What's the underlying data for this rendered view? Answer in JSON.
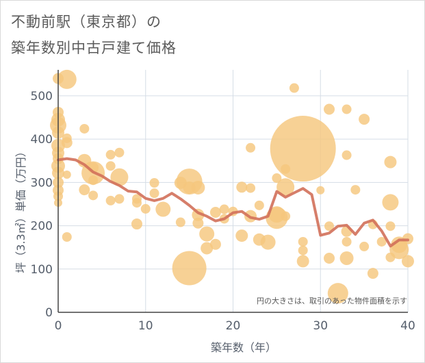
{
  "chart_data": {
    "type": "scatter",
    "title_lines": [
      "不動前駅（東京都）の",
      "築年数別中古戸建て価格"
    ],
    "xlabel": "築年数（年）",
    "ylabel": "坪（3.3㎡）単価（万円）",
    "xlim": [
      0,
      40
    ],
    "ylim": [
      0,
      560
    ],
    "x_ticks": [
      "0",
      "10",
      "20",
      "30",
      "40"
    ],
    "y_ticks": [
      "0",
      "100",
      "200",
      "300",
      "400",
      "500"
    ],
    "grid": true,
    "note": "円の大きさは、取引のあった物件面積を示す",
    "colors": {
      "bubble": "#f5c77e",
      "line": "#d2705a",
      "grid": "#d5dde6",
      "axis": "#444444"
    },
    "bubbles": [
      {
        "x": 0,
        "y": 540,
        "s": 8
      },
      {
        "x": 1,
        "y": 538,
        "s": 14
      },
      {
        "x": 0,
        "y": 462,
        "s": 8
      },
      {
        "x": 0,
        "y": 445,
        "s": 10
      },
      {
        "x": 0,
        "y": 432,
        "s": 12
      },
      {
        "x": 0,
        "y": 415,
        "s": 9
      },
      {
        "x": 1,
        "y": 402,
        "s": 7
      },
      {
        "x": 1,
        "y": 392,
        "s": 8
      },
      {
        "x": 0,
        "y": 385,
        "s": 10
      },
      {
        "x": 0,
        "y": 368,
        "s": 9
      },
      {
        "x": 0,
        "y": 355,
        "s": 8
      },
      {
        "x": 0,
        "y": 338,
        "s": 10
      },
      {
        "x": 0,
        "y": 322,
        "s": 9
      },
      {
        "x": 0,
        "y": 300,
        "s": 8
      },
      {
        "x": 0,
        "y": 282,
        "s": 8
      },
      {
        "x": 0,
        "y": 268,
        "s": 7
      },
      {
        "x": 0,
        "y": 253,
        "s": 6
      },
      {
        "x": 1,
        "y": 174,
        "s": 7
      },
      {
        "x": 1,
        "y": 318,
        "s": 6
      },
      {
        "x": 3,
        "y": 424,
        "s": 7
      },
      {
        "x": 3,
        "y": 350,
        "s": 10
      },
      {
        "x": 4,
        "y": 334,
        "s": 8
      },
      {
        "x": 4,
        "y": 322,
        "s": 17
      },
      {
        "x": 4,
        "y": 305,
        "s": 7
      },
      {
        "x": 3,
        "y": 283,
        "s": 8
      },
      {
        "x": 4,
        "y": 270,
        "s": 7
      },
      {
        "x": 6,
        "y": 364,
        "s": 7
      },
      {
        "x": 6,
        "y": 338,
        "s": 7
      },
      {
        "x": 6,
        "y": 258,
        "s": 7
      },
      {
        "x": 7,
        "y": 369,
        "s": 7
      },
      {
        "x": 7,
        "y": 312,
        "s": 13
      },
      {
        "x": 7,
        "y": 262,
        "s": 7
      },
      {
        "x": 9,
        "y": 262,
        "s": 7
      },
      {
        "x": 9,
        "y": 253,
        "s": 7
      },
      {
        "x": 9,
        "y": 204,
        "s": 8
      },
      {
        "x": 10,
        "y": 239,
        "s": 7
      },
      {
        "x": 11,
        "y": 299,
        "s": 7
      },
      {
        "x": 11,
        "y": 275,
        "s": 7
      },
      {
        "x": 12,
        "y": 238,
        "s": 11
      },
      {
        "x": 14,
        "y": 299,
        "s": 9
      },
      {
        "x": 14,
        "y": 208,
        "s": 7
      },
      {
        "x": 15,
        "y": 302,
        "s": 19
      },
      {
        "x": 15,
        "y": 288,
        "s": 9
      },
      {
        "x": 15,
        "y": 102,
        "s": 25
      },
      {
        "x": 16,
        "y": 288,
        "s": 10
      },
      {
        "x": 16,
        "y": 225,
        "s": 9
      },
      {
        "x": 16,
        "y": 206,
        "s": 8
      },
      {
        "x": 17,
        "y": 181,
        "s": 11
      },
      {
        "x": 17,
        "y": 148,
        "s": 9
      },
      {
        "x": 18,
        "y": 231,
        "s": 8
      },
      {
        "x": 18,
        "y": 157,
        "s": 8
      },
      {
        "x": 19,
        "y": 238,
        "s": 7
      },
      {
        "x": 19,
        "y": 216,
        "s": 7
      },
      {
        "x": 20,
        "y": 233,
        "s": 7
      },
      {
        "x": 21,
        "y": 289,
        "s": 8
      },
      {
        "x": 21,
        "y": 177,
        "s": 9
      },
      {
        "x": 22,
        "y": 380,
        "s": 7
      },
      {
        "x": 22,
        "y": 287,
        "s": 7
      },
      {
        "x": 22,
        "y": 222,
        "s": 9
      },
      {
        "x": 23,
        "y": 247,
        "s": 7
      },
      {
        "x": 23,
        "y": 168,
        "s": 9
      },
      {
        "x": 24,
        "y": 162,
        "s": 11
      },
      {
        "x": 25,
        "y": 310,
        "s": 7
      },
      {
        "x": 25,
        "y": 226,
        "s": 12
      },
      {
        "x": 25,
        "y": 218,
        "s": 16
      },
      {
        "x": 26,
        "y": 331,
        "s": 7
      },
      {
        "x": 26,
        "y": 289,
        "s": 13
      },
      {
        "x": 26,
        "y": 222,
        "s": 7
      },
      {
        "x": 27,
        "y": 518,
        "s": 7
      },
      {
        "x": 28,
        "y": 378,
        "s": 48
      },
      {
        "x": 28,
        "y": 163,
        "s": 7
      },
      {
        "x": 28,
        "y": 143,
        "s": 7
      },
      {
        "x": 28,
        "y": 118,
        "s": 9
      },
      {
        "x": 30,
        "y": 282,
        "s": 6
      },
      {
        "x": 31,
        "y": 469,
        "s": 8
      },
      {
        "x": 31,
        "y": 199,
        "s": 7
      },
      {
        "x": 31,
        "y": 125,
        "s": 8
      },
      {
        "x": 32,
        "y": 44,
        "s": 15
      },
      {
        "x": 33,
        "y": 469,
        "s": 7
      },
      {
        "x": 33,
        "y": 363,
        "s": 7
      },
      {
        "x": 33,
        "y": 187,
        "s": 8
      },
      {
        "x": 33,
        "y": 163,
        "s": 7
      },
      {
        "x": 33,
        "y": 125,
        "s": 10
      },
      {
        "x": 34,
        "y": 283,
        "s": 7
      },
      {
        "x": 35,
        "y": 446,
        "s": 8
      },
      {
        "x": 35,
        "y": 152,
        "s": 7
      },
      {
        "x": 36,
        "y": 203,
        "s": 7
      },
      {
        "x": 36,
        "y": 90,
        "s": 8
      },
      {
        "x": 37,
        "y": 163,
        "s": 7
      },
      {
        "x": 38,
        "y": 347,
        "s": 9
      },
      {
        "x": 38,
        "y": 254,
        "s": 12
      },
      {
        "x": 38,
        "y": 199,
        "s": 7
      },
      {
        "x": 38,
        "y": 127,
        "s": 7
      },
      {
        "x": 39,
        "y": 156,
        "s": 12
      },
      {
        "x": 39,
        "y": 145,
        "s": 14
      },
      {
        "x": 40,
        "y": 118,
        "s": 9
      },
      {
        "x": 40,
        "y": 170,
        "s": 8
      }
    ],
    "series": [
      {
        "x": [
          0,
          1,
          2,
          3,
          4,
          5,
          6,
          7,
          8,
          9,
          10,
          11,
          12,
          13,
          14,
          15,
          16,
          17,
          18,
          19,
          20,
          21,
          22,
          23,
          24,
          25,
          26,
          27,
          28,
          29,
          30,
          31,
          32,
          33,
          34,
          35,
          36,
          37,
          38,
          39,
          40
        ],
        "values": [
          352,
          355,
          352,
          341,
          324,
          315,
          302,
          293,
          280,
          278,
          263,
          258,
          263,
          275,
          262,
          247,
          230,
          222,
          211,
          216,
          230,
          233,
          219,
          215,
          222,
          279,
          266,
          276,
          286,
          272,
          178,
          183,
          199,
          201,
          180,
          206,
          213,
          188,
          153,
          167,
          167
        ]
      }
    ]
  }
}
